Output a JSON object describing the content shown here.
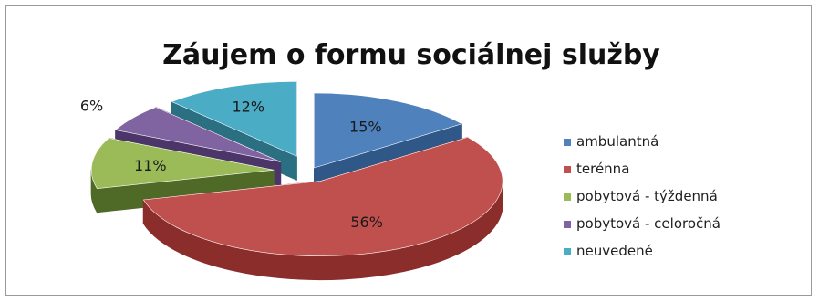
{
  "chart_data": {
    "type": "pie",
    "style": "3d-exploded",
    "title": "Záujem o formu sociálnej služby",
    "legend_position": "right",
    "slices": [
      {
        "label": "ambulantná",
        "value": 15,
        "value_label": "15%",
        "color": "#4F81BD",
        "side": "#2f5787"
      },
      {
        "label": "terénna",
        "value": 56,
        "value_label": "56%",
        "color": "#C0504D",
        "side": "#8a2d2b"
      },
      {
        "label": "pobytová - týždenná",
        "value": 11,
        "value_label": "11%",
        "color": "#9BBB59",
        "side": "#4f6a26"
      },
      {
        "label": "pobytová - celoročná",
        "value": 6,
        "value_label": "6%",
        "color": "#8064A2",
        "side": "#4c3669"
      },
      {
        "label": "neuvedené",
        "value": 12,
        "value_label": "12%",
        "color": "#4BACC6",
        "side": "#2a6f82"
      }
    ]
  }
}
